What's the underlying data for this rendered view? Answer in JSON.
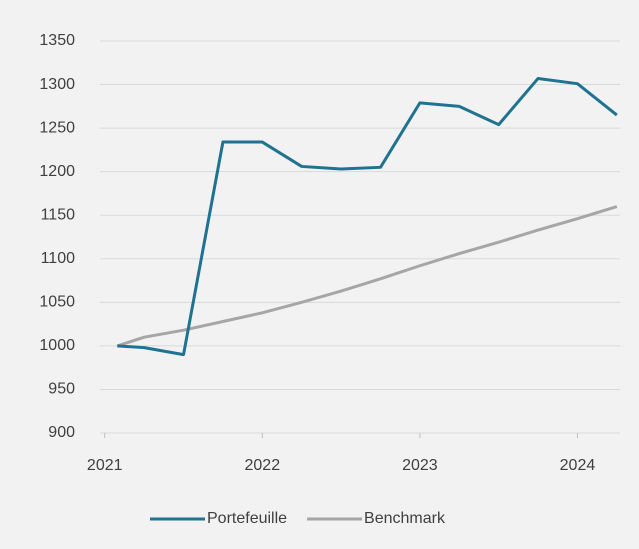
{
  "chart_data": {
    "type": "line",
    "x": [
      2021.08,
      2021.25,
      2021.5,
      2021.75,
      2022,
      2022.25,
      2022.5,
      2022.75,
      2023,
      2023.25,
      2023.5,
      2023.75,
      2024,
      2024.25
    ],
    "series": [
      {
        "name": "Portefeuille",
        "color": "#1f7391",
        "values": [
          1000,
          998,
          990,
          1234,
          1234,
          1206,
          1203,
          1205,
          1279,
          1275,
          1254,
          1307,
          1301,
          1265
        ]
      },
      {
        "name": "Benchmark",
        "color": "#a6a6a6",
        "values": [
          1000,
          1010,
          1018,
          1028,
          1038,
          1050,
          1063,
          1077,
          1092,
          1106,
          1119,
          1133,
          1146,
          1160
        ]
      }
    ],
    "xlim": [
      2020.97,
      2024.27
    ],
    "xticks": [
      2021,
      2022,
      2023,
      2024
    ],
    "ylim": [
      900,
      1350
    ],
    "yticks": [
      900,
      950,
      1000,
      1050,
      1100,
      1150,
      1200,
      1250,
      1300,
      1350
    ],
    "grid": true,
    "legend": "bottom"
  }
}
